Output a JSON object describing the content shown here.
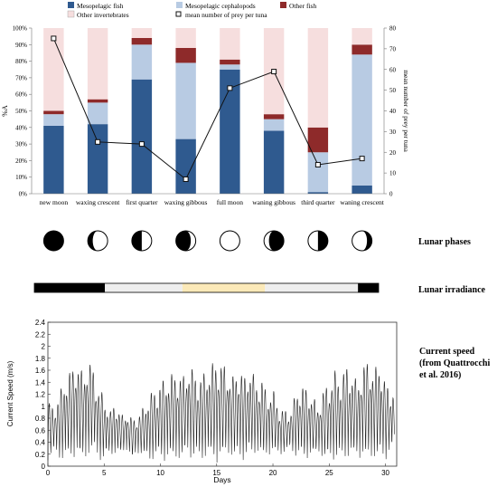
{
  "colors": {
    "mesopelagic_fish": "#2f5a8f",
    "mesopelagic_cephalopods": "#b8cbe3",
    "other_fish": "#8e2a2a",
    "other_invertebrates": "#f6dede",
    "mean_line": "#111111",
    "irradiance_dark": "#000000",
    "irradiance_mid": "#eeeeee",
    "irradiance_bright": "#fbe9b8",
    "current_line": "#222222"
  },
  "chart_data": [
    {
      "type": "bar",
      "stacked": true,
      "categories": [
        "new moon",
        "waxing crescent",
        "first quarter",
        "waxing gibbous",
        "full moon",
        "waning gibbous",
        "third quarter",
        "waning crescent"
      ],
      "series": [
        {
          "name": "Mesopelagic fish",
          "values": [
            41,
            42,
            69,
            33,
            75,
            38,
            1,
            5
          ]
        },
        {
          "name": "Mesopelagic cephalopods",
          "values": [
            7,
            13,
            21,
            46,
            3,
            7,
            24,
            79
          ]
        },
        {
          "name": "Other fish",
          "values": [
            2,
            2,
            4,
            9,
            3,
            3,
            15,
            6
          ]
        },
        {
          "name": "Other invertebrates",
          "values": [
            50,
            43,
            6,
            12,
            19,
            52,
            60,
            10
          ]
        }
      ],
      "line_series": {
        "name": "mean number of prey per tuna",
        "values": [
          75,
          25,
          24,
          7,
          51,
          59,
          14,
          17
        ]
      },
      "ylabel": "%A",
      "y2label": "mean number of prey per tuna",
      "ylim": [
        0,
        100
      ],
      "y2lim": [
        0,
        80
      ],
      "yticks": [
        "0%",
        "10%",
        "20%",
        "30%",
        "40%",
        "50%",
        "60%",
        "70%",
        "80%",
        "90%",
        "100%"
      ],
      "y2ticks": [
        "0",
        "10",
        "20",
        "30",
        "40",
        "50",
        "60",
        "70",
        "80"
      ],
      "legend_position": "top"
    },
    {
      "type": "line",
      "xlabel": "Days",
      "ylabel": "Current Speed (m/s)",
      "xlim": [
        0,
        31
      ],
      "ylim": [
        0,
        2.4
      ],
      "xticks": [
        "0",
        "5",
        "10",
        "15",
        "20",
        "25",
        "30"
      ],
      "yticks": [
        "0",
        "0.2",
        "0.4",
        "0.6",
        "0.8",
        "1",
        "1.2",
        "1.4",
        "1.6",
        "1.8",
        "2",
        "2.2",
        "2.4"
      ],
      "series": [
        {
          "x": [
            0,
            0.5,
            1,
            1.5,
            2,
            2.5,
            3,
            3.5,
            4,
            4.5,
            5,
            5.5,
            6,
            6.5,
            7,
            7.5,
            8,
            8.5,
            9,
            9.5,
            10,
            10.5,
            11,
            11.5,
            12,
            12.5,
            13,
            13.5,
            14,
            14.5,
            15,
            15.5,
            16,
            16.5,
            17,
            17.5,
            18,
            18.5,
            19,
            19.5,
            20,
            20.5,
            21,
            21.5,
            22,
            22.5,
            23,
            23.5,
            24,
            24.5,
            25,
            25.5,
            26,
            26.5,
            27,
            27.5,
            28,
            28.5,
            29,
            29.5,
            30,
            30.5
          ],
          "upper": [
            1.1,
            1.0,
            1.2,
            1.5,
            1.6,
            1.8,
            1.6,
            1.75,
            1.7,
            1.3,
            1.2,
            0.9,
            1.1,
            0.85,
            0.9,
            0.8,
            0.85,
            1.0,
            1.2,
            1.3,
            1.4,
            1.5,
            1.55,
            1.6,
            1.5,
            1.7,
            1.6,
            1.5,
            1.6,
            1.7,
            1.8,
            1.75,
            1.6,
            1.5,
            1.7,
            1.5,
            1.7,
            1.4,
            1.5,
            1.2,
            1.3,
            1.0,
            0.95,
            0.9,
            1.2,
            1.4,
            1.3,
            1.2,
            1.0,
            1.3,
            1.4,
            1.6,
            1.5,
            1.7,
            1.6,
            1.4,
            1.7,
            1.8,
            1.6,
            1.8,
            1.4,
            1.3
          ],
          "lower": [
            0.1,
            0.2,
            0.1,
            0.05,
            0.1,
            0.15,
            0.05,
            0.1,
            0.2,
            0.1,
            0.05,
            0.2,
            0.15,
            0.2,
            0.25,
            0.1,
            0.2,
            0.15,
            0.05,
            0.1,
            0.1,
            0.05,
            0.1,
            0.05,
            0.1,
            0.15,
            0.1,
            0.05,
            0.1,
            0.1,
            0.05,
            0.1,
            0.15,
            0.1,
            0.05,
            0.1,
            0.1,
            0.2,
            0.1,
            0.15,
            0.2,
            0.15,
            0.2,
            0.25,
            0.15,
            0.1,
            0.1,
            0.15,
            0.2,
            0.1,
            0.05,
            0.1,
            0.05,
            0.1,
            0.1,
            0.15,
            0.1,
            0.05,
            0.1,
            0.05,
            0.1,
            0.2
          ]
        }
      ]
    }
  ],
  "legend": {
    "mesopelagic_fish": "Mesopelagic fish",
    "mesopelagic_cephalopods": "Mesopelagic cephalopods",
    "other_fish": "Other fish",
    "other_invertebrates": "Other invertebrates",
    "mean_line": "mean number of prey per tuna"
  },
  "lunar_phases": {
    "label": "Lunar phases",
    "icons": [
      "new-moon-icon",
      "waxing-crescent-icon",
      "first-quarter-icon",
      "waxing-gibbous-icon",
      "full-moon-icon",
      "waning-gibbous-icon",
      "third-quarter-icon",
      "waning-crescent-icon"
    ]
  },
  "lunar_irradiance": {
    "label": "Lunar irradiance",
    "segments": [
      {
        "color": "irradiance_dark",
        "from": 0,
        "to": 0.205
      },
      {
        "color": "irradiance_mid",
        "from": 0.205,
        "to": 0.43
      },
      {
        "color": "irradiance_bright",
        "from": 0.43,
        "to": 0.67
      },
      {
        "color": "irradiance_mid",
        "from": 0.67,
        "to": 0.94
      },
      {
        "color": "irradiance_dark",
        "from": 0.94,
        "to": 1.0
      }
    ]
  },
  "current_speed": {
    "label_line1": "Current speed",
    "label_line2": "(from Quattrocchi",
    "label_line3": "et al. 2016)"
  }
}
